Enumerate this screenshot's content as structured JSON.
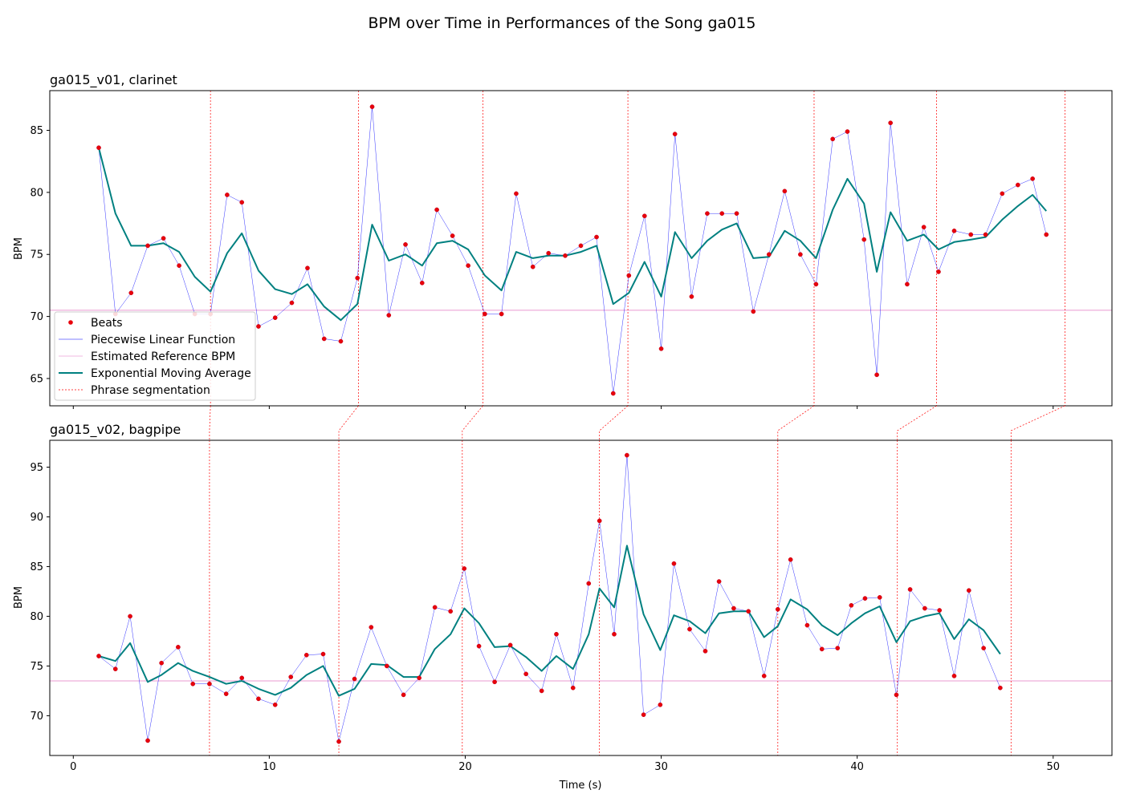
{
  "chart_data": {
    "type": "line",
    "title": "BPM over Time in Performances of the Song ga015",
    "xlabel": "Time (s)",
    "colors": {
      "beats": "#e8000b",
      "beats_edge": "#c0001a",
      "piecewise": "#0000ff",
      "reference": "#e377c2",
      "ema": "#008080",
      "phrase": "#ff0000"
    },
    "legend": {
      "placement": "lower-left",
      "entries": [
        "Beats",
        "Piecewise Linear Function",
        "Estimated Reference BPM",
        "Exponential Moving Average",
        "Phrase segmentation"
      ]
    },
    "panels": [
      {
        "title": "ga015_v01, clarinet",
        "ylabel": "BPM",
        "xlim": [
          -1.2,
          53.0
        ],
        "ylim": [
          62.8,
          88.2
        ],
        "xticks": [
          0,
          10,
          20,
          30,
          40,
          50
        ],
        "yticks": [
          65,
          70,
          75,
          80,
          85
        ],
        "reference_bpm": 70.5,
        "phrase_boundaries": [
          7.0,
          14.55,
          20.9,
          28.3,
          37.8,
          44.05,
          50.6
        ],
        "beats": {
          "x": [
            1.3,
            2.15,
            2.95,
            3.8,
            4.6,
            5.4,
            6.2,
            7.0,
            7.85,
            8.6,
            9.45,
            10.3,
            11.15,
            11.95,
            12.8,
            13.65,
            14.5,
            15.25,
            16.1,
            16.95,
            17.8,
            18.55,
            19.35,
            20.15,
            21.0,
            21.85,
            22.6,
            23.45,
            24.25,
            25.1,
            25.9,
            26.7,
            27.55,
            28.35,
            29.15,
            30.0,
            30.7,
            31.55,
            32.35,
            33.1,
            33.85,
            34.7,
            35.5,
            36.3,
            37.1,
            37.9,
            38.75,
            39.5,
            40.35,
            41.0,
            41.7,
            42.55,
            43.4,
            44.15,
            44.95,
            45.8,
            46.55,
            47.4,
            48.2,
            48.95,
            49.65
          ],
          "bpm": [
            83.6,
            70.2,
            71.9,
            75.7,
            76.3,
            74.1,
            70.2,
            70.2,
            79.8,
            79.2,
            69.2,
            69.9,
            71.1,
            73.9,
            68.2,
            68.0,
            73.1,
            86.9,
            70.1,
            75.8,
            72.7,
            78.6,
            76.5,
            74.1,
            70.2,
            70.2,
            79.9,
            74.0,
            75.1,
            74.9,
            75.7,
            76.4,
            63.8,
            73.3,
            78.1,
            67.4,
            84.7,
            71.6,
            78.3,
            78.3,
            78.3,
            70.4,
            75.0,
            80.1,
            75.0,
            72.6,
            84.3,
            84.9,
            76.2,
            65.3,
            85.6,
            72.6,
            77.2,
            73.6,
            76.9,
            76.6,
            76.6,
            79.9,
            80.6,
            81.1,
            76.6
          ]
        },
        "ema": {
          "x": [
            1.3,
            2.15,
            2.95,
            3.8,
            4.6,
            5.4,
            6.2,
            7.0,
            7.85,
            8.6,
            9.45,
            10.3,
            11.15,
            11.95,
            12.8,
            13.65,
            14.5,
            15.25,
            16.1,
            16.95,
            17.8,
            18.55,
            19.35,
            20.15,
            21.0,
            21.85,
            22.6,
            23.45,
            24.25,
            25.1,
            25.9,
            26.7,
            27.55,
            28.35,
            29.15,
            30.0,
            30.7,
            31.55,
            32.35,
            33.1,
            33.85,
            34.7,
            35.5,
            36.3,
            37.1,
            37.9,
            38.75,
            39.5,
            40.35,
            41.0,
            41.7,
            42.55,
            43.4,
            44.15,
            44.95,
            45.8,
            46.55,
            47.4,
            48.2,
            48.95,
            49.65
          ],
          "bpm": [
            83.6,
            78.3,
            75.7,
            75.7,
            75.9,
            75.2,
            73.2,
            72.0,
            75.1,
            76.7,
            73.7,
            72.2,
            71.8,
            72.6,
            70.8,
            69.7,
            71.0,
            77.4,
            74.5,
            75.0,
            74.1,
            75.9,
            76.1,
            75.4,
            73.3,
            72.1,
            75.2,
            74.7,
            74.9,
            74.9,
            75.2,
            75.7,
            71.0,
            71.9,
            74.4,
            71.6,
            76.8,
            74.7,
            76.1,
            77.0,
            77.5,
            74.7,
            74.8,
            76.9,
            76.1,
            74.7,
            78.6,
            81.1,
            79.1,
            73.6,
            78.4,
            76.1,
            76.6,
            75.4,
            76.0,
            76.2,
            76.4,
            77.8,
            78.9,
            79.8,
            78.5
          ]
        }
      },
      {
        "title": "ga015_v02, bagpipe",
        "ylabel": "BPM",
        "xlim": [
          -1.2,
          53.0
        ],
        "ylim": [
          66.0,
          97.7
        ],
        "xticks": [
          0,
          10,
          20,
          30,
          40,
          50
        ],
        "xticklabels": [
          "0",
          "10",
          "20",
          "30",
          "40",
          "50"
        ],
        "yticks": [
          70,
          75,
          80,
          85,
          90,
          95
        ],
        "reference_bpm": 73.5,
        "phrase_boundaries": [
          6.95,
          13.55,
          19.85,
          26.85,
          35.95,
          42.05,
          47.85
        ],
        "beats": {
          "x": [
            1.3,
            2.15,
            2.9,
            3.8,
            4.5,
            5.35,
            6.1,
            6.95,
            7.8,
            8.6,
            9.45,
            10.3,
            11.1,
            11.9,
            12.75,
            13.55,
            14.35,
            15.2,
            16.0,
            16.85,
            17.65,
            18.45,
            19.25,
            19.95,
            20.7,
            21.5,
            22.3,
            23.1,
            23.9,
            24.65,
            25.5,
            26.3,
            26.85,
            27.6,
            28.25,
            29.1,
            29.95,
            30.65,
            31.45,
            32.25,
            32.95,
            33.7,
            34.45,
            35.25,
            35.95,
            36.6,
            37.45,
            38.2,
            39.0,
            39.7,
            40.4,
            41.15,
            42.0,
            42.7,
            43.45,
            44.2,
            44.95,
            45.7,
            46.45,
            47.3
          ],
          "bpm": [
            76.0,
            74.7,
            80.0,
            67.5,
            75.3,
            76.9,
            73.2,
            73.2,
            72.2,
            73.8,
            71.7,
            71.1,
            73.9,
            76.1,
            76.2,
            67.4,
            73.7,
            78.9,
            75.0,
            72.1,
            73.8,
            80.9,
            80.5,
            84.8,
            77.0,
            73.4,
            77.1,
            74.2,
            72.5,
            78.2,
            72.8,
            83.3,
            89.6,
            78.2,
            96.2,
            70.1,
            71.1,
            85.3,
            78.7,
            76.5,
            83.5,
            80.8,
            80.5,
            74.0,
            80.7,
            85.7,
            79.1,
            76.7,
            76.8,
            81.1,
            81.8,
            81.9,
            72.1,
            82.7,
            80.8,
            80.6,
            74.0,
            82.6,
            76.8,
            72.8
          ]
        },
        "ema": {
          "x": [
            1.3,
            2.15,
            2.9,
            3.8,
            4.5,
            5.35,
            6.1,
            6.95,
            7.8,
            8.6,
            9.45,
            10.3,
            11.1,
            11.9,
            12.75,
            13.55,
            14.35,
            15.2,
            16.0,
            16.85,
            17.65,
            18.45,
            19.25,
            19.95,
            20.7,
            21.5,
            22.3,
            23.1,
            23.9,
            24.65,
            25.5,
            26.3,
            26.85,
            27.6,
            28.25,
            29.1,
            29.95,
            30.65,
            31.45,
            32.25,
            32.95,
            33.7,
            34.45,
            35.25,
            35.95,
            36.6,
            37.45,
            38.2,
            39.0,
            39.7,
            40.4,
            41.15,
            42.0,
            42.7,
            43.45,
            44.2,
            44.95,
            45.7,
            46.45,
            47.3
          ],
          "bpm": [
            76.0,
            75.5,
            77.3,
            73.4,
            74.1,
            75.3,
            74.5,
            73.9,
            73.2,
            73.5,
            72.7,
            72.1,
            72.8,
            74.1,
            75.0,
            72.0,
            72.7,
            75.2,
            75.1,
            73.9,
            73.9,
            76.7,
            78.2,
            80.8,
            79.3,
            76.9,
            77.0,
            75.9,
            74.5,
            76.0,
            74.7,
            78.2,
            82.8,
            80.9,
            87.1,
            80.2,
            76.6,
            80.1,
            79.5,
            78.3,
            80.3,
            80.5,
            80.5,
            77.9,
            79.0,
            81.7,
            80.7,
            79.1,
            78.1,
            79.3,
            80.3,
            81.0,
            77.4,
            79.5,
            80.0,
            80.3,
            77.7,
            79.7,
            78.6,
            76.2
          ]
        }
      }
    ]
  }
}
